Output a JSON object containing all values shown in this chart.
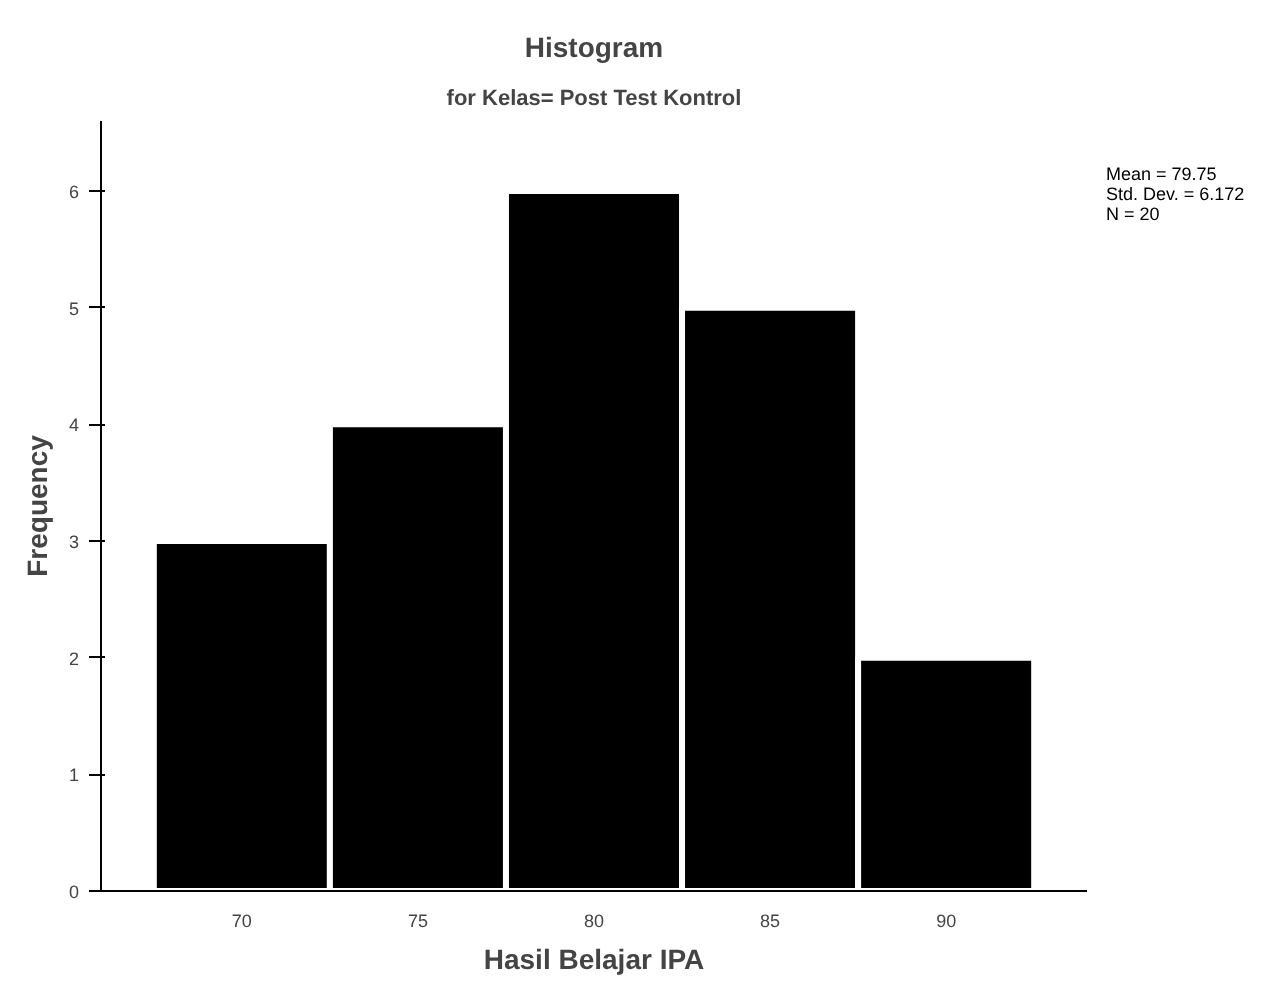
{
  "chart_data": {
    "type": "histogram",
    "title": "Histogram",
    "subtitle": "for Kelas= Post Test Kontrol",
    "xlabel": "Hasil Belajar IPA",
    "ylabel": "Frequency",
    "bins": [
      67.5,
      72.5,
      77.5,
      82.5,
      87.5,
      92.5
    ],
    "values": [
      3,
      4,
      6,
      5,
      2
    ],
    "color": "#000000",
    "xlim": [
      66,
      94
    ],
    "xticks": [
      70,
      75,
      80,
      85,
      90
    ],
    "ylim": [
      0,
      6.6
    ],
    "yticks": [
      0,
      1,
      2,
      3,
      4,
      5,
      6
    ],
    "grid": false,
    "annotations": [
      "Mean = 79.75",
      "Std. Dev. = 6.172",
      "N = 20"
    ]
  }
}
